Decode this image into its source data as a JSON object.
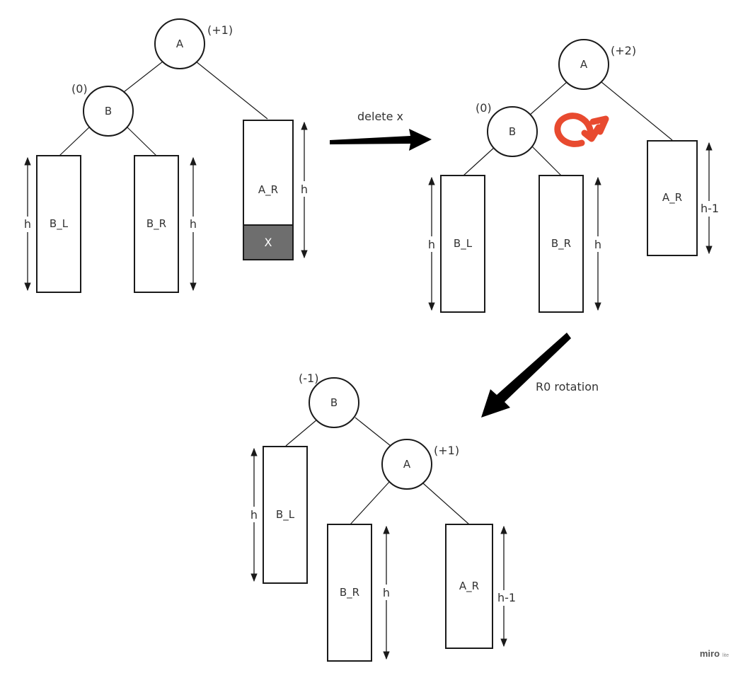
{
  "diagram1": {
    "node_a": "A",
    "node_a_balance": "(+1)",
    "node_b": "B",
    "node_b_balance": "(0)",
    "box_bl": "B_L",
    "box_br": "B_R",
    "box_ar": "A_R",
    "box_x": "X",
    "h_bl": "h",
    "h_br": "h",
    "h_ar": "h"
  },
  "arrow1_label": "delete x",
  "diagram2": {
    "node_a": "A",
    "node_a_balance": "(+2)",
    "node_b": "B",
    "node_b_balance": "(0)",
    "box_bl": "B_L",
    "box_br": "B_R",
    "box_ar": "A_R",
    "h_bl": "h",
    "h_br": "h",
    "h_ar": "h-1"
  },
  "arrow2_label": "R0 rotation",
  "diagram3": {
    "node_b": "B",
    "node_b_balance": "(-1)",
    "node_a": "A",
    "node_a_balance": "(+1)",
    "box_bl": "B_L",
    "box_br": "B_R",
    "box_ar": "A_R",
    "h_bl": "h",
    "h_br": "h",
    "h_ar": "h-1"
  },
  "watermark": {
    "brand": "miro",
    "edition": "lite"
  },
  "colors": {
    "rotation_arrow": "#e84a2f",
    "deleted_block": "#6e6e6e",
    "stroke": "#1a1a1a"
  }
}
